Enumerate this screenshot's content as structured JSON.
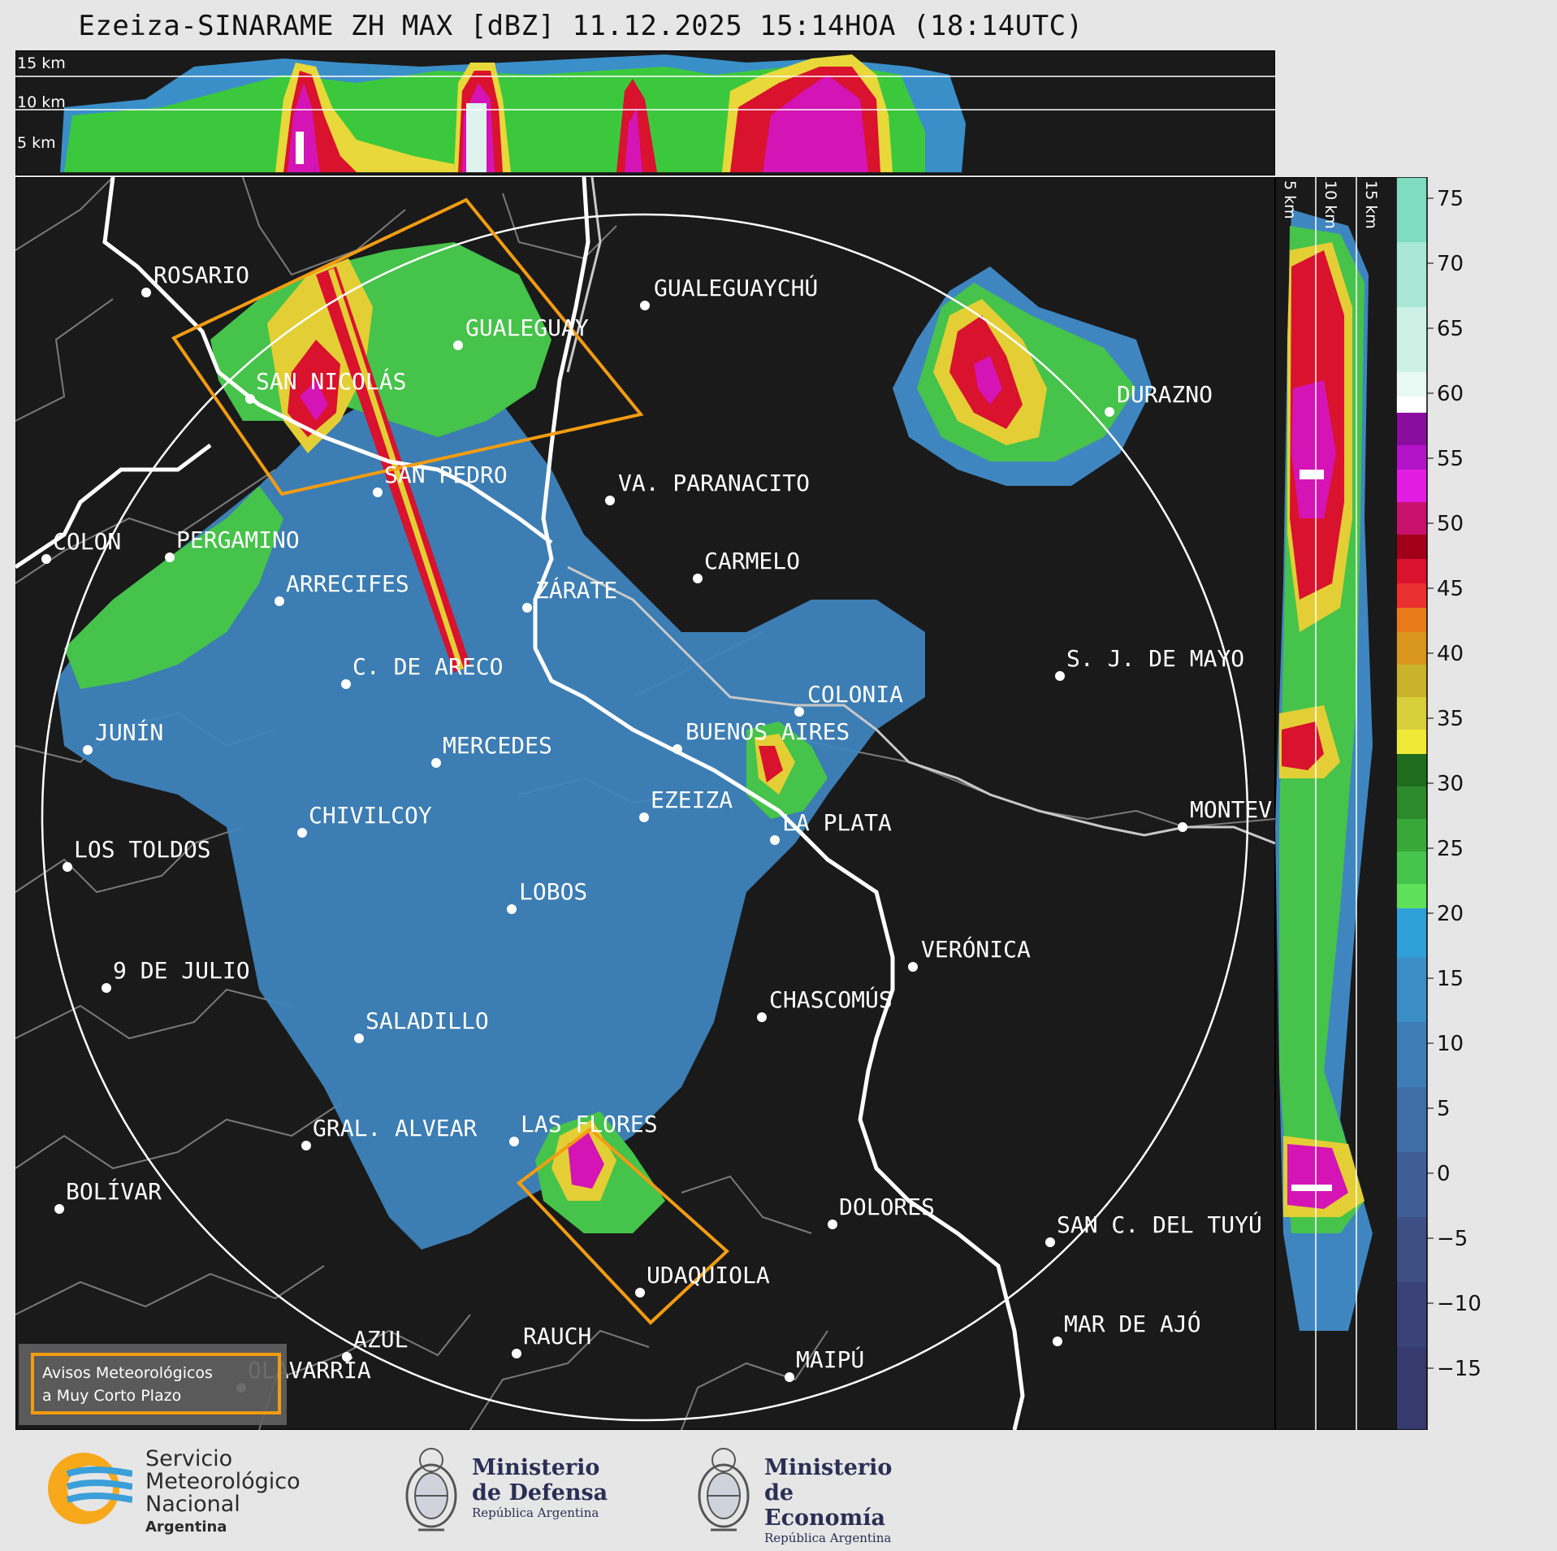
{
  "title": "Ezeiza-SINARAME ZH MAX [dBZ] 11.12.2025 15:14HOA (18:14UTC)",
  "top_panel_labels": [
    "15 km",
    "10 km",
    "5 km"
  ],
  "side_panel_labels": [
    "5 km",
    "10 km",
    "15 km"
  ],
  "colorbar_ticks": [
    "75",
    "70",
    "65",
    "60",
    "55",
    "50",
    "45",
    "40",
    "35",
    "30",
    "25",
    "20",
    "15",
    "10",
    "5",
    "0",
    "−5",
    "−10",
    "−15"
  ],
  "cities": [
    {
      "name": "ROSARIO"
    },
    {
      "name": "GUALEGUAYCHÚ"
    },
    {
      "name": "GUALEGUAY"
    },
    {
      "name": "SAN NICOLÁS"
    },
    {
      "name": "DURAZNO"
    },
    {
      "name": "SAN PEDRO"
    },
    {
      "name": "VA. PARANACITO"
    },
    {
      "name": "COLON"
    },
    {
      "name": "PERGAMINO"
    },
    {
      "name": "CARMELO"
    },
    {
      "name": "ARRECIFES"
    },
    {
      "name": "ZÁRATE"
    },
    {
      "name": "S. J. DE MAYO"
    },
    {
      "name": "C. DE ARECO"
    },
    {
      "name": "COLONIA"
    },
    {
      "name": "JUNÍN"
    },
    {
      "name": "BUENOS AIRES"
    },
    {
      "name": "MERCEDES"
    },
    {
      "name": "EZEIZA"
    },
    {
      "name": "MONTEV"
    },
    {
      "name": "CHIVILCOY"
    },
    {
      "name": "LA PLATA"
    },
    {
      "name": "LOS TOLDOS"
    },
    {
      "name": "LOBOS"
    },
    {
      "name": "VERÓNICA"
    },
    {
      "name": "9 DE JULIO"
    },
    {
      "name": "CHASCOMÚS"
    },
    {
      "name": "SALADILLO"
    },
    {
      "name": "GRAL. ALVEAR"
    },
    {
      "name": "LAS FLORES"
    },
    {
      "name": "BOLÍVAR"
    },
    {
      "name": "DOLORES"
    },
    {
      "name": "SAN C. DEL TUYÚ"
    },
    {
      "name": "UDAQUIOLA"
    },
    {
      "name": "MAR DE AJÓ"
    },
    {
      "name": "AZUL"
    },
    {
      "name": "RAUCH"
    },
    {
      "name": "MAIPÚ"
    },
    {
      "name": "OLAVARRÍA"
    }
  ],
  "legend": {
    "line1": "Avisos Meteorológicos",
    "line2": "a Muy Corto Plazo",
    "color": "#f39c12"
  },
  "logos": {
    "smn": {
      "line1": "Servicio",
      "line2": "Meteorológico",
      "line3": "Nacional",
      "line4": "Argentina"
    },
    "defensa": {
      "line1": "Ministerio",
      "line2": "de Defensa",
      "line3": "República Argentina"
    },
    "economia": {
      "line1": "Ministerio",
      "line2": "de Economía",
      "line3": "República Argentina"
    }
  }
}
